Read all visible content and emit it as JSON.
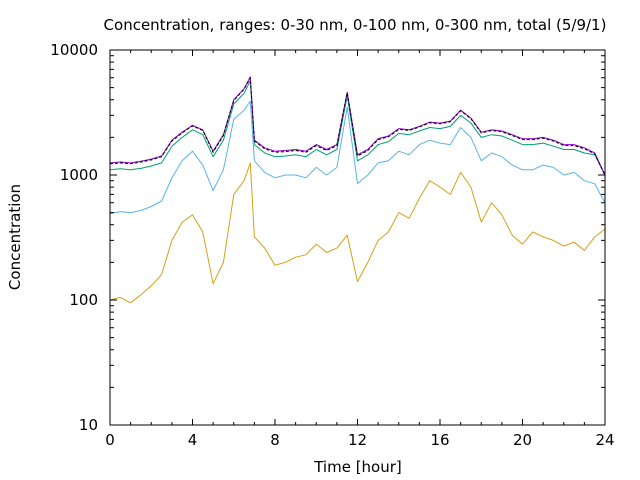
{
  "chart_data": {
    "type": "line",
    "title": "Concentration, ranges: 0-30 nm, 0-100 nm, 0-300 nm, total (5/9/1)",
    "xlabel": "Time [hour]",
    "ylabel": "Concentration",
    "xlim": [
      0,
      24
    ],
    "ylim": [
      10,
      10000
    ],
    "yscale": "log",
    "grid": false,
    "legend": "none",
    "x_ticks": [
      "0",
      "4",
      "8",
      "12",
      "16",
      "20",
      "24"
    ],
    "y_ticks": [
      "10",
      "100",
      "1000",
      "10000"
    ],
    "x": [
      0,
      0.5,
      1,
      1.5,
      2,
      2.5,
      3,
      3.5,
      4,
      4.5,
      5,
      5.5,
      6,
      6.5,
      6.8,
      7,
      7.5,
      8,
      8.5,
      9,
      9.5,
      10,
      10.5,
      11,
      11.5,
      12,
      12.5,
      13,
      13.5,
      14,
      14.5,
      15,
      15.5,
      16,
      16.5,
      17,
      17.5,
      18,
      18.5,
      19,
      19.5,
      20,
      20.5,
      21,
      21.5,
      22,
      22.5,
      23,
      23.5,
      24
    ],
    "series": [
      {
        "color": "#d4a017",
        "values": [
          100,
          105,
          95,
          110,
          130,
          160,
          300,
          420,
          480,
          350,
          135,
          200,
          700,
          900,
          1250,
          320,
          260,
          190,
          200,
          220,
          230,
          280,
          240,
          260,
          330,
          140,
          200,
          300,
          350,
          500,
          450,
          650,
          900,
          800,
          700,
          1050,
          800,
          420,
          600,
          480,
          330,
          280,
          350,
          320,
          300,
          270,
          290,
          250,
          320,
          370
        ]
      },
      {
        "color": "#56b4e9",
        "values": [
          490,
          510,
          500,
          520,
          560,
          620,
          950,
          1300,
          1550,
          1200,
          750,
          1100,
          2800,
          3300,
          3900,
          1300,
          1050,
          950,
          1000,
          1000,
          950,
          1150,
          1000,
          1150,
          3500,
          850,
          1000,
          1250,
          1300,
          1550,
          1450,
          1750,
          1900,
          1800,
          1750,
          2400,
          2000,
          1300,
          1500,
          1400,
          1200,
          1100,
          1100,
          1200,
          1150,
          1000,
          1050,
          900,
          850,
          600
        ]
      },
      {
        "color": "#009e73",
        "values": [
          1100,
          1120,
          1100,
          1130,
          1180,
          1250,
          1700,
          2000,
          2300,
          2100,
          1400,
          1900,
          3700,
          4500,
          5700,
          1750,
          1500,
          1400,
          1420,
          1450,
          1400,
          1600,
          1450,
          1600,
          4300,
          1300,
          1450,
          1750,
          1850,
          2150,
          2100,
          2250,
          2400,
          2350,
          2450,
          3000,
          2600,
          2000,
          2100,
          2050,
          1900,
          1750,
          1750,
          1800,
          1700,
          1600,
          1600,
          1500,
          1450,
          1000
        ]
      },
      {
        "color": "#9400d3",
        "values": [
          1250,
          1270,
          1250,
          1290,
          1340,
          1420,
          1900,
          2200,
          2500,
          2300,
          1550,
          2100,
          4000,
          4900,
          6100,
          1900,
          1650,
          1550,
          1570,
          1600,
          1550,
          1750,
          1600,
          1750,
          4600,
          1450,
          1600,
          1950,
          2050,
          2350,
          2300,
          2450,
          2650,
          2600,
          2700,
          3300,
          2850,
          2200,
          2300,
          2250,
          2100,
          1950,
          1950,
          2000,
          1900,
          1750,
          1750,
          1650,
          1500,
          1000
        ]
      },
      {
        "color": "#000000",
        "dash": true,
        "values": [
          1230,
          1250,
          1230,
          1270,
          1320,
          1400,
          1870,
          2170,
          2470,
          2270,
          1520,
          2070,
          3950,
          4850,
          6000,
          1870,
          1620,
          1520,
          1540,
          1570,
          1520,
          1720,
          1570,
          1720,
          4550,
          1420,
          1570,
          1920,
          2020,
          2320,
          2270,
          2420,
          2620,
          2570,
          2670,
          3270,
          2820,
          2170,
          2270,
          2220,
          2070,
          1920,
          1920,
          1970,
          1870,
          1720,
          1720,
          1620,
          1480,
          990
        ]
      }
    ]
  }
}
